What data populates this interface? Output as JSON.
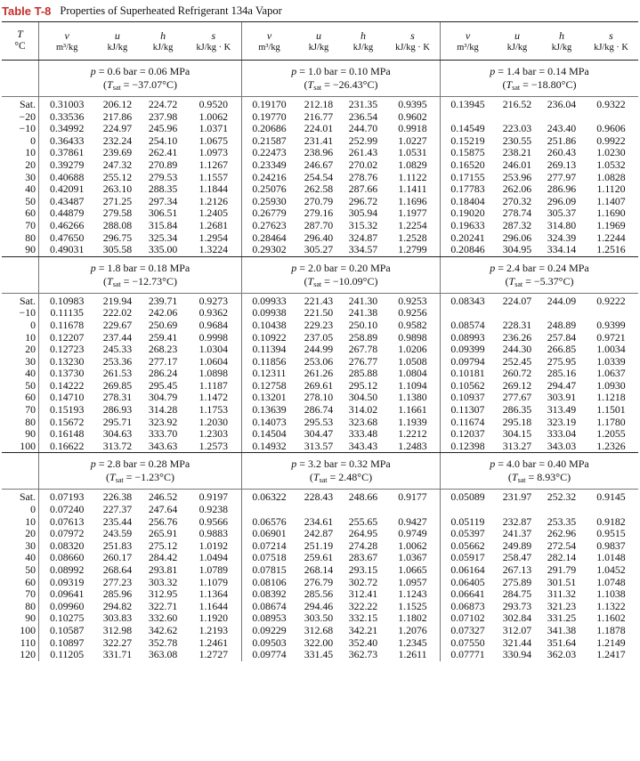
{
  "title": {
    "label": "Table T-8",
    "text": "Properties of Superheated Refrigerant 134a Vapor"
  },
  "header": {
    "t_symbol": "T",
    "t_unit": "°C",
    "symbols": [
      "v",
      "u",
      "h",
      "s"
    ],
    "units": [
      "m³/kg",
      "kJ/kg",
      "kJ/kg",
      "kJ/kg · K"
    ]
  },
  "sections": [
    {
      "temps": [
        "Sat.",
        "−20",
        "−10",
        "0",
        "10",
        "20",
        "30",
        "40",
        "50",
        "60",
        "70",
        "80",
        "90"
      ],
      "blocks": [
        {
          "p": "p = 0.6 bar = 0.06 MPa",
          "tsat": "(Tsat = −37.07°C)",
          "rows": [
            [
              "0.31003",
              "206.12",
              "224.72",
              "0.9520"
            ],
            [
              "0.33536",
              "217.86",
              "237.98",
              "1.0062"
            ],
            [
              "0.34992",
              "224.97",
              "245.96",
              "1.0371"
            ],
            [
              "0.36433",
              "232.24",
              "254.10",
              "1.0675"
            ],
            [
              "0.37861",
              "239.69",
              "262.41",
              "1.0973"
            ],
            [
              "0.39279",
              "247.32",
              "270.89",
              "1.1267"
            ],
            [
              "0.40688",
              "255.12",
              "279.53",
              "1.1557"
            ],
            [
              "0.42091",
              "263.10",
              "288.35",
              "1.1844"
            ],
            [
              "0.43487",
              "271.25",
              "297.34",
              "1.2126"
            ],
            [
              "0.44879",
              "279.58",
              "306.51",
              "1.2405"
            ],
            [
              "0.46266",
              "288.08",
              "315.84",
              "1.2681"
            ],
            [
              "0.47650",
              "296.75",
              "325.34",
              "1.2954"
            ],
            [
              "0.49031",
              "305.58",
              "335.00",
              "1.3224"
            ]
          ]
        },
        {
          "p": "p = 1.0 bar = 0.10 MPa",
          "tsat": "(Tsat = −26.43°C)",
          "rows": [
            [
              "0.19170",
              "212.18",
              "231.35",
              "0.9395"
            ],
            [
              "0.19770",
              "216.77",
              "236.54",
              "0.9602"
            ],
            [
              "0.20686",
              "224.01",
              "244.70",
              "0.9918"
            ],
            [
              "0.21587",
              "231.41",
              "252.99",
              "1.0227"
            ],
            [
              "0.22473",
              "238.96",
              "261.43",
              "1.0531"
            ],
            [
              "0.23349",
              "246.67",
              "270.02",
              "1.0829"
            ],
            [
              "0.24216",
              "254.54",
              "278.76",
              "1.1122"
            ],
            [
              "0.25076",
              "262.58",
              "287.66",
              "1.1411"
            ],
            [
              "0.25930",
              "270.79",
              "296.72",
              "1.1696"
            ],
            [
              "0.26779",
              "279.16",
              "305.94",
              "1.1977"
            ],
            [
              "0.27623",
              "287.70",
              "315.32",
              "1.2254"
            ],
            [
              "0.28464",
              "296.40",
              "324.87",
              "1.2528"
            ],
            [
              "0.29302",
              "305.27",
              "334.57",
              "1.2799"
            ]
          ]
        },
        {
          "p": "p = 1.4 bar = 0.14 MPa",
          "tsat": "(Tsat = −18.80°C)",
          "rows": [
            [
              "0.13945",
              "216.52",
              "236.04",
              "0.9322"
            ],
            [
              "",
              "",
              "",
              ""
            ],
            [
              "0.14549",
              "223.03",
              "243.40",
              "0.9606"
            ],
            [
              "0.15219",
              "230.55",
              "251.86",
              "0.9922"
            ],
            [
              "0.15875",
              "238.21",
              "260.43",
              "1.0230"
            ],
            [
              "0.16520",
              "246.01",
              "269.13",
              "1.0532"
            ],
            [
              "0.17155",
              "253.96",
              "277.97",
              "1.0828"
            ],
            [
              "0.17783",
              "262.06",
              "286.96",
              "1.1120"
            ],
            [
              "0.18404",
              "270.32",
              "296.09",
              "1.1407"
            ],
            [
              "0.19020",
              "278.74",
              "305.37",
              "1.1690"
            ],
            [
              "0.19633",
              "287.32",
              "314.80",
              "1.1969"
            ],
            [
              "0.20241",
              "296.06",
              "324.39",
              "1.2244"
            ],
            [
              "0.20846",
              "304.95",
              "334.14",
              "1.2516"
            ]
          ]
        }
      ]
    },
    {
      "temps": [
        "Sat.",
        "−10",
        "0",
        "10",
        "20",
        "30",
        "40",
        "50",
        "60",
        "70",
        "80",
        "90",
        "100"
      ],
      "blocks": [
        {
          "p": "p = 1.8 bar = 0.18 MPa",
          "tsat": "(Tsat = −12.73°C)",
          "rows": [
            [
              "0.10983",
              "219.94",
              "239.71",
              "0.9273"
            ],
            [
              "0.11135",
              "222.02",
              "242.06",
              "0.9362"
            ],
            [
              "0.11678",
              "229.67",
              "250.69",
              "0.9684"
            ],
            [
              "0.12207",
              "237.44",
              "259.41",
              "0.9998"
            ],
            [
              "0.12723",
              "245.33",
              "268.23",
              "1.0304"
            ],
            [
              "0.13230",
              "253.36",
              "277.17",
              "1.0604"
            ],
            [
              "0.13730",
              "261.53",
              "286.24",
              "1.0898"
            ],
            [
              "0.14222",
              "269.85",
              "295.45",
              "1.1187"
            ],
            [
              "0.14710",
              "278.31",
              "304.79",
              "1.1472"
            ],
            [
              "0.15193",
              "286.93",
              "314.28",
              "1.1753"
            ],
            [
              "0.15672",
              "295.71",
              "323.92",
              "1.2030"
            ],
            [
              "0.16148",
              "304.63",
              "333.70",
              "1.2303"
            ],
            [
              "0.16622",
              "313.72",
              "343.63",
              "1.2573"
            ]
          ]
        },
        {
          "p": "p = 2.0 bar = 0.20 MPa",
          "tsat": "(Tsat = −10.09°C)",
          "rows": [
            [
              "0.09933",
              "221.43",
              "241.30",
              "0.9253"
            ],
            [
              "0.09938",
              "221.50",
              "241.38",
              "0.9256"
            ],
            [
              "0.10438",
              "229.23",
              "250.10",
              "0.9582"
            ],
            [
              "0.10922",
              "237.05",
              "258.89",
              "0.9898"
            ],
            [
              "0.11394",
              "244.99",
              "267.78",
              "1.0206"
            ],
            [
              "0.11856",
              "253.06",
              "276.77",
              "1.0508"
            ],
            [
              "0.12311",
              "261.26",
              "285.88",
              "1.0804"
            ],
            [
              "0.12758",
              "269.61",
              "295.12",
              "1.1094"
            ],
            [
              "0.13201",
              "278.10",
              "304.50",
              "1.1380"
            ],
            [
              "0.13639",
              "286.74",
              "314.02",
              "1.1661"
            ],
            [
              "0.14073",
              "295.53",
              "323.68",
              "1.1939"
            ],
            [
              "0.14504",
              "304.47",
              "333.48",
              "1.2212"
            ],
            [
              "0.14932",
              "313.57",
              "343.43",
              "1.2483"
            ]
          ]
        },
        {
          "p": "p = 2.4 bar = 0.24 MPa",
          "tsat": "(Tsat = −5.37°C)",
          "rows": [
            [
              "0.08343",
              "224.07",
              "244.09",
              "0.9222"
            ],
            [
              "",
              "",
              "",
              ""
            ],
            [
              "0.08574",
              "228.31",
              "248.89",
              "0.9399"
            ],
            [
              "0.08993",
              "236.26",
              "257.84",
              "0.9721"
            ],
            [
              "0.09399",
              "244.30",
              "266.85",
              "1.0034"
            ],
            [
              "0.09794",
              "252.45",
              "275.95",
              "1.0339"
            ],
            [
              "0.10181",
              "260.72",
              "285.16",
              "1.0637"
            ],
            [
              "0.10562",
              "269.12",
              "294.47",
              "1.0930"
            ],
            [
              "0.10937",
              "277.67",
              "303.91",
              "1.1218"
            ],
            [
              "0.11307",
              "286.35",
              "313.49",
              "1.1501"
            ],
            [
              "0.11674",
              "295.18",
              "323.19",
              "1.1780"
            ],
            [
              "0.12037",
              "304.15",
              "333.04",
              "1.2055"
            ],
            [
              "0.12398",
              "313.27",
              "343.03",
              "1.2326"
            ]
          ]
        }
      ]
    },
    {
      "temps": [
        "Sat.",
        "0",
        "10",
        "20",
        "30",
        "40",
        "50",
        "60",
        "70",
        "80",
        "90",
        "100",
        "110",
        "120"
      ],
      "blocks": [
        {
          "p": "p = 2.8 bar = 0.28 MPa",
          "tsat": "(Tsat = −1.23°C)",
          "rows": [
            [
              "0.07193",
              "226.38",
              "246.52",
              "0.9197"
            ],
            [
              "0.07240",
              "227.37",
              "247.64",
              "0.9238"
            ],
            [
              "0.07613",
              "235.44",
              "256.76",
              "0.9566"
            ],
            [
              "0.07972",
              "243.59",
              "265.91",
              "0.9883"
            ],
            [
              "0.08320",
              "251.83",
              "275.12",
              "1.0192"
            ],
            [
              "0.08660",
              "260.17",
              "284.42",
              "1.0494"
            ],
            [
              "0.08992",
              "268.64",
              "293.81",
              "1.0789"
            ],
            [
              "0.09319",
              "277.23",
              "303.32",
              "1.1079"
            ],
            [
              "0.09641",
              "285.96",
              "312.95",
              "1.1364"
            ],
            [
              "0.09960",
              "294.82",
              "322.71",
              "1.1644"
            ],
            [
              "0.10275",
              "303.83",
              "332.60",
              "1.1920"
            ],
            [
              "0.10587",
              "312.98",
              "342.62",
              "1.2193"
            ],
            [
              "0.10897",
              "322.27",
              "352.78",
              "1.2461"
            ],
            [
              "0.11205",
              "331.71",
              "363.08",
              "1.2727"
            ]
          ]
        },
        {
          "p": "p = 3.2 bar = 0.32 MPa",
          "tsat": "(Tsat = 2.48°C)",
          "rows": [
            [
              "0.06322",
              "228.43",
              "248.66",
              "0.9177"
            ],
            [
              "",
              "",
              "",
              ""
            ],
            [
              "0.06576",
              "234.61",
              "255.65",
              "0.9427"
            ],
            [
              "0.06901",
              "242.87",
              "264.95",
              "0.9749"
            ],
            [
              "0.07214",
              "251.19",
              "274.28",
              "1.0062"
            ],
            [
              "0.07518",
              "259.61",
              "283.67",
              "1.0367"
            ],
            [
              "0.07815",
              "268.14",
              "293.15",
              "1.0665"
            ],
            [
              "0.08106",
              "276.79",
              "302.72",
              "1.0957"
            ],
            [
              "0.08392",
              "285.56",
              "312.41",
              "1.1243"
            ],
            [
              "0.08674",
              "294.46",
              "322.22",
              "1.1525"
            ],
            [
              "0.08953",
              "303.50",
              "332.15",
              "1.1802"
            ],
            [
              "0.09229",
              "312.68",
              "342.21",
              "1.2076"
            ],
            [
              "0.09503",
              "322.00",
              "352.40",
              "1.2345"
            ],
            [
              "0.09774",
              "331.45",
              "362.73",
              "1.2611"
            ]
          ]
        },
        {
          "p": "p = 4.0 bar = 0.40 MPa",
          "tsat": "(Tsat = 8.93°C)",
          "rows": [
            [
              "0.05089",
              "231.97",
              "252.32",
              "0.9145"
            ],
            [
              "",
              "",
              "",
              ""
            ],
            [
              "0.05119",
              "232.87",
              "253.35",
              "0.9182"
            ],
            [
              "0.05397",
              "241.37",
              "262.96",
              "0.9515"
            ],
            [
              "0.05662",
              "249.89",
              "272.54",
              "0.9837"
            ],
            [
              "0.05917",
              "258.47",
              "282.14",
              "1.0148"
            ],
            [
              "0.06164",
              "267.13",
              "291.79",
              "1.0452"
            ],
            [
              "0.06405",
              "275.89",
              "301.51",
              "1.0748"
            ],
            [
              "0.06641",
              "284.75",
              "311.32",
              "1.1038"
            ],
            [
              "0.06873",
              "293.73",
              "321.23",
              "1.1322"
            ],
            [
              "0.07102",
              "302.84",
              "331.25",
              "1.1602"
            ],
            [
              "0.07327",
              "312.07",
              "341.38",
              "1.1878"
            ],
            [
              "0.07550",
              "321.44",
              "351.64",
              "1.2149"
            ],
            [
              "0.07771",
              "330.94",
              "362.03",
              "1.2417"
            ]
          ]
        }
      ]
    }
  ]
}
